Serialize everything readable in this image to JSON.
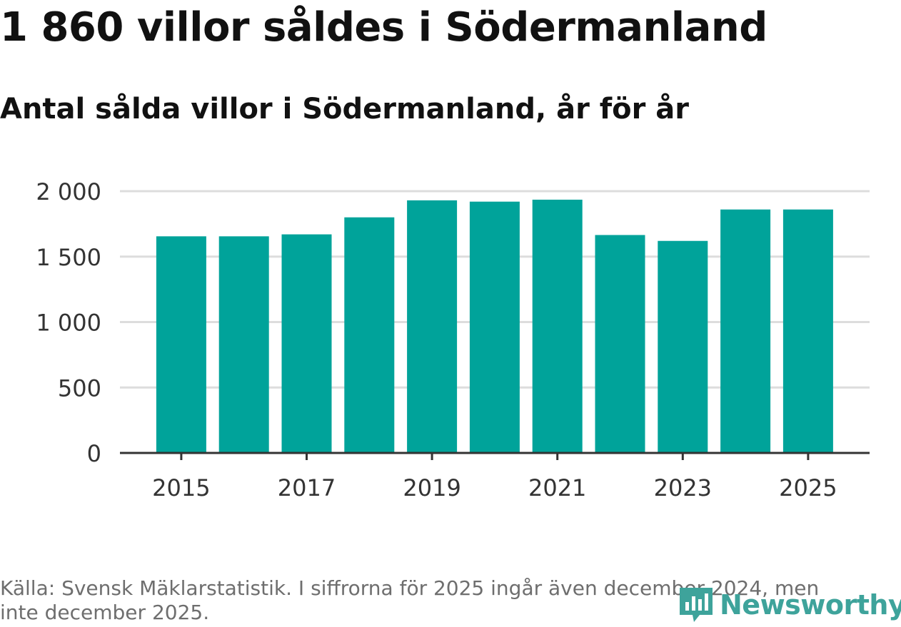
{
  "header": {
    "title": "1 860 villor såldes i Södermanland",
    "subtitle": "Antal sålda villor i Södermanland, år för år"
  },
  "footer": {
    "source": "Källa: Svensk Mäklarstatistik. I siffrorna för 2025 ingår även december 2024, men inte december 2025.",
    "brand": "Newsworthy"
  },
  "colors": {
    "bar": "#00a39a",
    "grid": "#dddddd",
    "axis": "#333333",
    "brand": "#3ea39b"
  },
  "chart_data": {
    "type": "bar",
    "title": "1 860 villor såldes i Södermanland",
    "subtitle": "Antal sålda villor i Södermanland, år för år",
    "xlabel": "",
    "ylabel": "",
    "categories": [
      "2015",
      "2016",
      "2017",
      "2018",
      "2019",
      "2020",
      "2021",
      "2022",
      "2023",
      "2024",
      "2025"
    ],
    "values": [
      1655,
      1655,
      1670,
      1800,
      1930,
      1920,
      1935,
      1665,
      1620,
      1860,
      1860
    ],
    "ylim": [
      0,
      2000
    ],
    "yticks": [
      0,
      500,
      1000,
      1500,
      2000
    ],
    "ytick_labels": [
      "0",
      "500",
      "1 000",
      "1 500",
      "2 000"
    ],
    "xtick_labels": [
      "2015",
      "2017",
      "2019",
      "2021",
      "2023",
      "2025"
    ],
    "grid": true
  }
}
